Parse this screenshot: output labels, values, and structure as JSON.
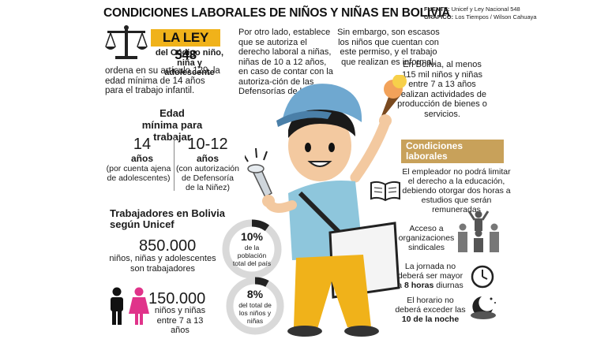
{
  "header": {
    "title": "CONDICIONES LABORALES DE NIÑOS Y NIÑAS EN BOLIVIA",
    "fuente_label": "FUENTE:",
    "fuente": "Unicef y Ley Nacional 548",
    "grafico_label": "GRÁFICO:",
    "grafico": "Los Tiempos / Wilson Cahuaya"
  },
  "ley": {
    "title": "LA LEY 548",
    "subtitle": "del Código niño, niña y adolescente",
    "text": "ordena en su artículo 129, la edad mínima de 14 años para el trabajo infantil."
  },
  "edad": {
    "heading": "Edad mínima para trabajar",
    "left_num": "14",
    "left_unit": "años",
    "left_note": "(por cuenta ajena de adolescentes)",
    "right_num": "10-12",
    "right_unit": "años",
    "right_note": "(con autorización de Defensoría de la Niñez)"
  },
  "trabajadores": {
    "heading": "Trabajadores en Bolivia según Unicef",
    "stat1_num": "850.000",
    "stat1_text": "niños, niñas y adolescentes son trabajadores",
    "stat1_pct": "10%",
    "stat1_pct_text": "de la población total del país",
    "stat2_num": "150.000",
    "stat2_text": "niños y niñas entre 7 a 13 años",
    "stat2_pct": "8%",
    "stat2_pct_text": "del total de los niños y niñas"
  },
  "middle": {
    "p1": "Por otro lado, establece que se autoriza el derecho laboral a niñas, niñas de 10 a 12 años, en caso de contar con la autoriza-ción de las Defensorías de la Niñez.",
    "p2": "Sin embargo, son escasos los niños que cuentan con este permiso, y el trabajo que realizan es informal.",
    "p3": "En Bolivia, al menos 115 mil niños y niñas entre 7 a 13 años realizan actividades de producción de bienes o servicios."
  },
  "condiciones": {
    "heading": "Condiciones laborales",
    "item1": "El empleador no podrá limitar el derecho a la educación, debiendo otorgar dos horas a estudios que serán remuneradas",
    "item2": "Acceso a organizaciones sindicales",
    "item3_a": "La jornada no deberá ser mayor a",
    "item3_b": "8 horas",
    "item3_c": "diurnas",
    "item4_a": "El horario no deberá exceder las",
    "item4_b": "10 de la noche"
  },
  "colors": {
    "accent": "#f0b21a",
    "cond": "#c8a15a",
    "girl": "#e0338a",
    "ring": "#d9d9d9"
  }
}
